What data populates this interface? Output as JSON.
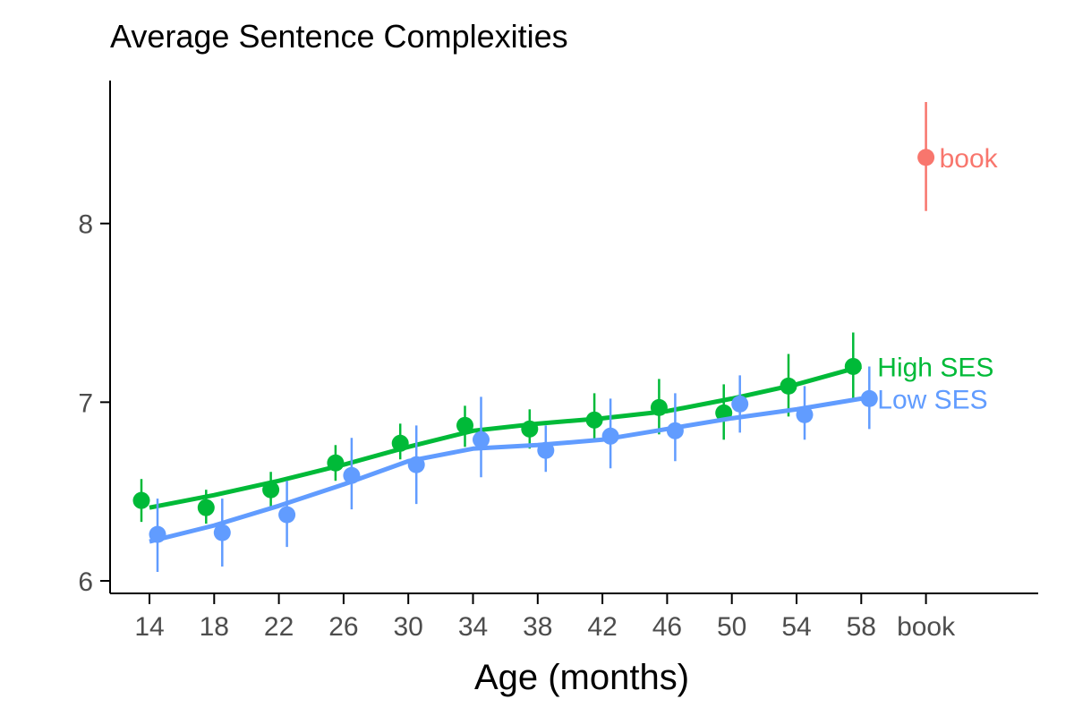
{
  "chart_data": {
    "type": "line",
    "title": "Average Sentence Complexities",
    "xlabel": "Age (months)",
    "ylabel": "",
    "x": [
      "14",
      "18",
      "22",
      "26",
      "30",
      "34",
      "38",
      "42",
      "46",
      "50",
      "54",
      "58",
      "book"
    ],
    "ylim": [
      5.93,
      8.8
    ],
    "yticks": [
      "6",
      "7",
      "8"
    ],
    "grid": false,
    "series": [
      {
        "name": "High SES",
        "color": "#00ba38",
        "points": [
          6.45,
          6.41,
          6.51,
          6.66,
          6.77,
          6.87,
          6.85,
          6.9,
          6.97,
          6.94,
          7.09,
          7.2
        ],
        "error": [
          [
            6.33,
            6.57
          ],
          [
            6.32,
            6.51
          ],
          [
            6.41,
            6.61
          ],
          [
            6.56,
            6.76
          ],
          [
            6.68,
            6.88
          ],
          [
            6.75,
            6.98
          ],
          [
            6.74,
            6.96
          ],
          [
            6.78,
            7.05
          ],
          [
            6.82,
            7.13
          ],
          [
            6.79,
            7.1
          ],
          [
            6.92,
            7.27
          ],
          [
            7.02,
            7.39
          ]
        ],
        "trend": [
          6.41,
          6.48,
          6.56,
          6.65,
          6.75,
          6.84,
          6.88,
          6.91,
          6.95,
          7.02,
          7.1,
          7.2
        ]
      },
      {
        "name": "Low SES",
        "color": "#619cff",
        "points": [
          6.26,
          6.27,
          6.37,
          6.59,
          6.65,
          6.79,
          6.73,
          6.81,
          6.84,
          6.99,
          6.93,
          7.02
        ],
        "error": [
          [
            6.05,
            6.46
          ],
          [
            6.08,
            6.46
          ],
          [
            6.19,
            6.56
          ],
          [
            6.4,
            6.8
          ],
          [
            6.43,
            6.87
          ],
          [
            6.58,
            7.03
          ],
          [
            6.61,
            6.87
          ],
          [
            6.63,
            7.02
          ],
          [
            6.67,
            7.05
          ],
          [
            6.83,
            7.15
          ],
          [
            6.79,
            7.09
          ],
          [
            6.85,
            7.2
          ]
        ],
        "trend": [
          6.22,
          6.31,
          6.42,
          6.54,
          6.67,
          6.74,
          6.76,
          6.79,
          6.85,
          6.91,
          6.96,
          7.02
        ]
      },
      {
        "name": "book",
        "color": "#f8766d",
        "category": "book",
        "point": 8.37,
        "error": [
          8.07,
          8.68
        ]
      }
    ]
  }
}
